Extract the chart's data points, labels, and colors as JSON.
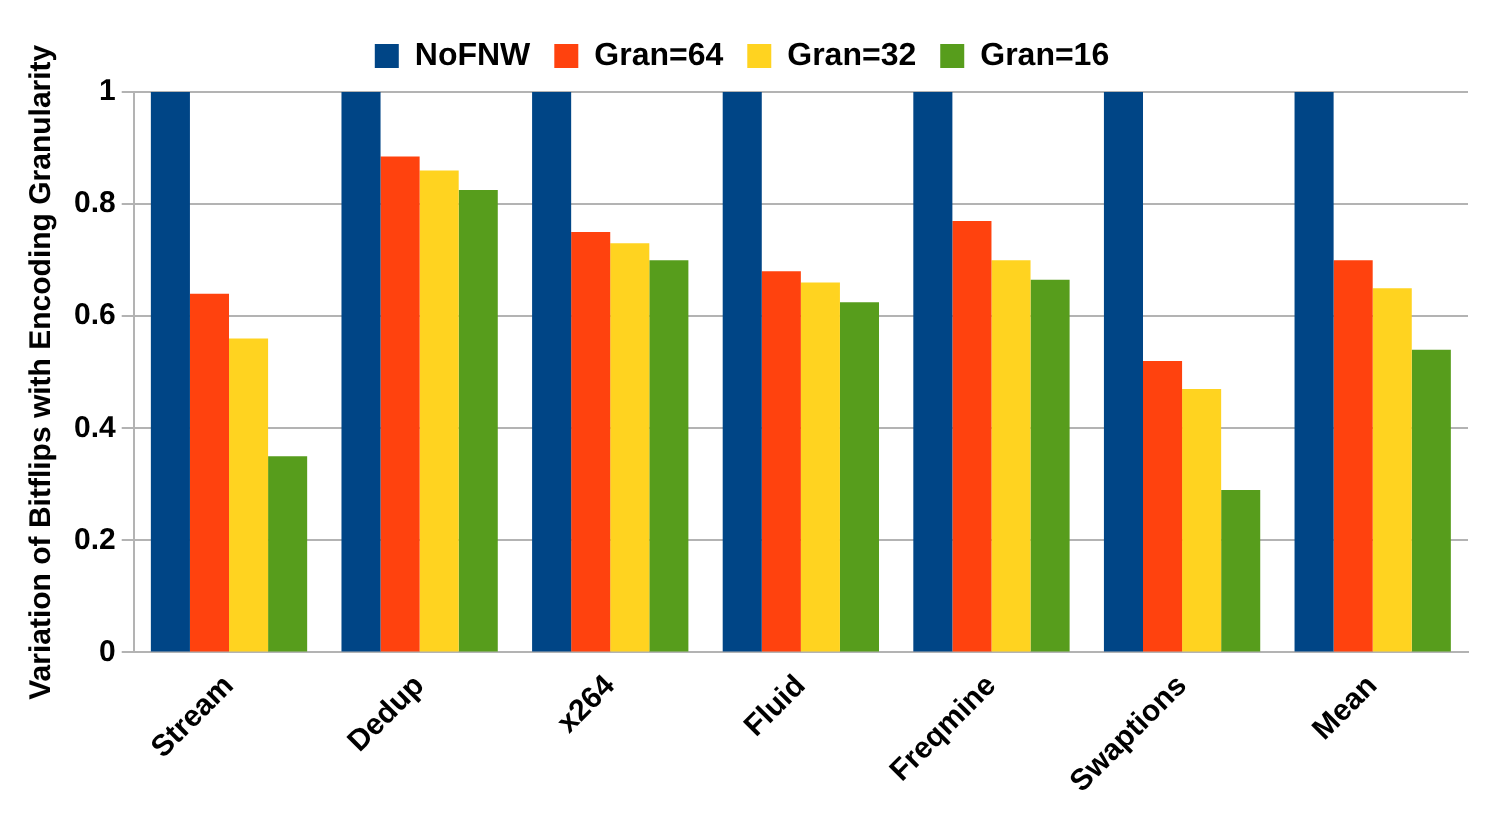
{
  "chart_data": {
    "type": "bar",
    "ylabel": "Variation of Bitflips with Encoding Granularity",
    "categories": [
      "Stream",
      "Dedup",
      "x264",
      "Fluid",
      "Freqmine",
      "Swaptions",
      "Mean"
    ],
    "series": [
      {
        "name": "NoFNW",
        "color": "#004586",
        "values": [
          1,
          1,
          1,
          1,
          1,
          1,
          1
        ]
      },
      {
        "name": "Gran=64",
        "color": "#ff420e",
        "values": [
          0.64,
          0.885,
          0.75,
          0.68,
          0.77,
          0.52,
          0.7
        ]
      },
      {
        "name": "Gran=32",
        "color": "#ffd320",
        "values": [
          0.56,
          0.86,
          0.73,
          0.66,
          0.7,
          0.47,
          0.65
        ]
      },
      {
        "name": "Gran=16",
        "color": "#579d1c",
        "values": [
          0.35,
          0.825,
          0.7,
          0.625,
          0.665,
          0.29,
          0.54
        ]
      }
    ],
    "ylim": [
      0,
      1
    ],
    "yticks": [
      0,
      0.2,
      0.4,
      0.6,
      0.8,
      1
    ],
    "grid": "y",
    "legend": "top"
  }
}
